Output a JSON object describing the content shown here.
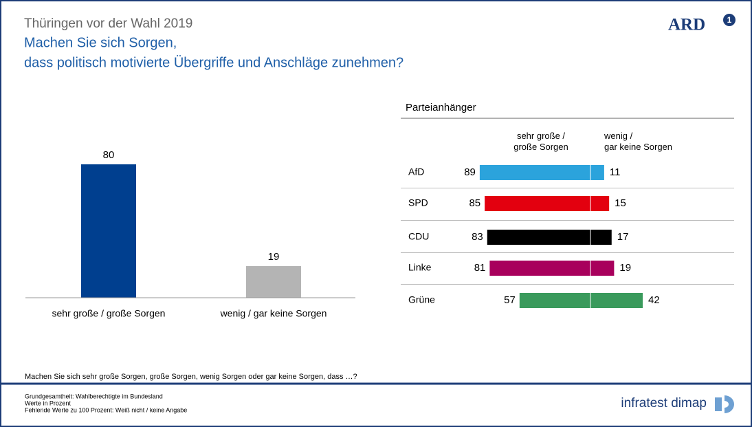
{
  "header": {
    "kicker": "Thüringen vor der Wahl 2019",
    "title": [
      "Machen Sie sich Sorgen,",
      "dass politisch motivierte Übergriffe und Anschläge zunehmen?"
    ],
    "logo": "ARD"
  },
  "chart_data": [
    {
      "type": "bar",
      "categories": [
        "sehr große / große Sorgen",
        "wenig / gar keine Sorgen"
      ],
      "values": [
        80,
        19
      ],
      "colors": [
        "#003f8f",
        "#b4b4b4"
      ],
      "ylim": [
        0,
        100
      ]
    },
    {
      "type": "diverging",
      "title": "Parteianhänger",
      "categories": [
        "AfD",
        "SPD",
        "CDU",
        "Linke",
        "Grüne"
      ],
      "colors": [
        "#2ba3dc",
        "#e3000f",
        "#000000",
        "#a8005c",
        "#3a9a5c"
      ],
      "series": [
        {
          "name": "sehr große /\ngroße Sorgen",
          "values": [
            89,
            85,
            83,
            81,
            57
          ]
        },
        {
          "name": "wenig /\ngar keine Sorgen",
          "values": [
            11,
            15,
            17,
            19,
            42
          ]
        }
      ],
      "xlim": [
        0,
        100
      ]
    }
  ],
  "footer": {
    "question": "Machen Sie sich sehr große Sorgen, große Sorgen, wenig Sorgen oder gar keine Sorgen, dass …?",
    "notes": [
      "Grundgesamtheit: Wahlberechtigte im Bundesland",
      "Werte in Prozent",
      "Fehlende Werte zu 100 Prozent: Weiß nicht / keine Angabe"
    ],
    "brand": "infratest dimap"
  }
}
